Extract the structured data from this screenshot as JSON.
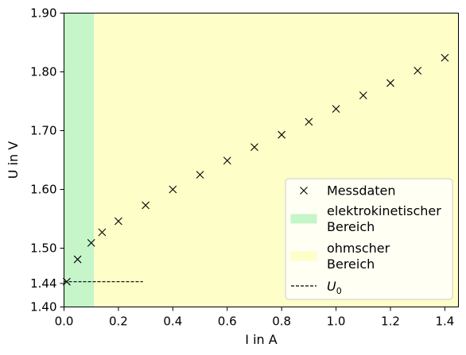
{
  "chart_data": {
    "type": "scatter",
    "xlabel": "I in A",
    "ylabel": "U in V",
    "xlim": [
      0,
      1.45
    ],
    "ylim": [
      1.4,
      1.9
    ],
    "xticks": [
      {
        "value": 0.0,
        "label": "0.0"
      },
      {
        "value": 0.2,
        "label": "0.2"
      },
      {
        "value": 0.4,
        "label": "0.4"
      },
      {
        "value": 0.6,
        "label": "0.6"
      },
      {
        "value": 0.8,
        "label": "0.8"
      },
      {
        "value": 1.0,
        "label": "1.0"
      },
      {
        "value": 1.2,
        "label": "1.2"
      },
      {
        "value": 1.4,
        "label": "1.4"
      }
    ],
    "yticks": [
      {
        "value": 1.4,
        "label": "1.40"
      },
      {
        "value": 1.44,
        "label": "1.44"
      },
      {
        "value": 1.5,
        "label": "1.50"
      },
      {
        "value": 1.6,
        "label": "1.60"
      },
      {
        "value": 1.7,
        "label": "1.70"
      },
      {
        "value": 1.8,
        "label": "1.80"
      },
      {
        "value": 1.9,
        "label": "1.90"
      }
    ],
    "grid": false,
    "legend_position": "lower-right",
    "regions": [
      {
        "name": "elektrokinetischer Bereich",
        "x_range": [
          0,
          0.11
        ],
        "color": "#c5f5c9"
      },
      {
        "name": "ohmscher Bereich",
        "x_range": [
          0.11,
          1.45
        ],
        "color": "#fefec8"
      }
    ],
    "series": [
      {
        "name": "Messdaten",
        "marker": "x",
        "color": "#000000",
        "x": [
          0.01,
          0.05,
          0.1,
          0.14,
          0.2,
          0.3,
          0.4,
          0.5,
          0.6,
          0.7,
          0.8,
          0.9,
          1.0,
          1.1,
          1.2,
          1.3,
          1.4
        ],
        "y": [
          1.443,
          1.481,
          1.509,
          1.527,
          1.546,
          1.573,
          1.6,
          1.625,
          1.649,
          1.672,
          1.693,
          1.715,
          1.737,
          1.76,
          1.781,
          1.802,
          1.824
        ]
      }
    ],
    "reference_line": {
      "name": "U_0",
      "y": 1.443,
      "x_range": [
        0,
        0.29
      ],
      "style": "dashed",
      "color": "#000000"
    },
    "legend": [
      {
        "type": "marker",
        "label": "Messdaten"
      },
      {
        "type": "patch",
        "color": "#c5f5c9",
        "label_lines": [
          "elektrokinetischer",
          "Bereich"
        ]
      },
      {
        "type": "patch",
        "color": "#fefec8",
        "label_lines": [
          "ohmscher",
          "Bereich"
        ]
      },
      {
        "type": "dashed",
        "label_main": "U",
        "label_sub": "0"
      }
    ]
  }
}
